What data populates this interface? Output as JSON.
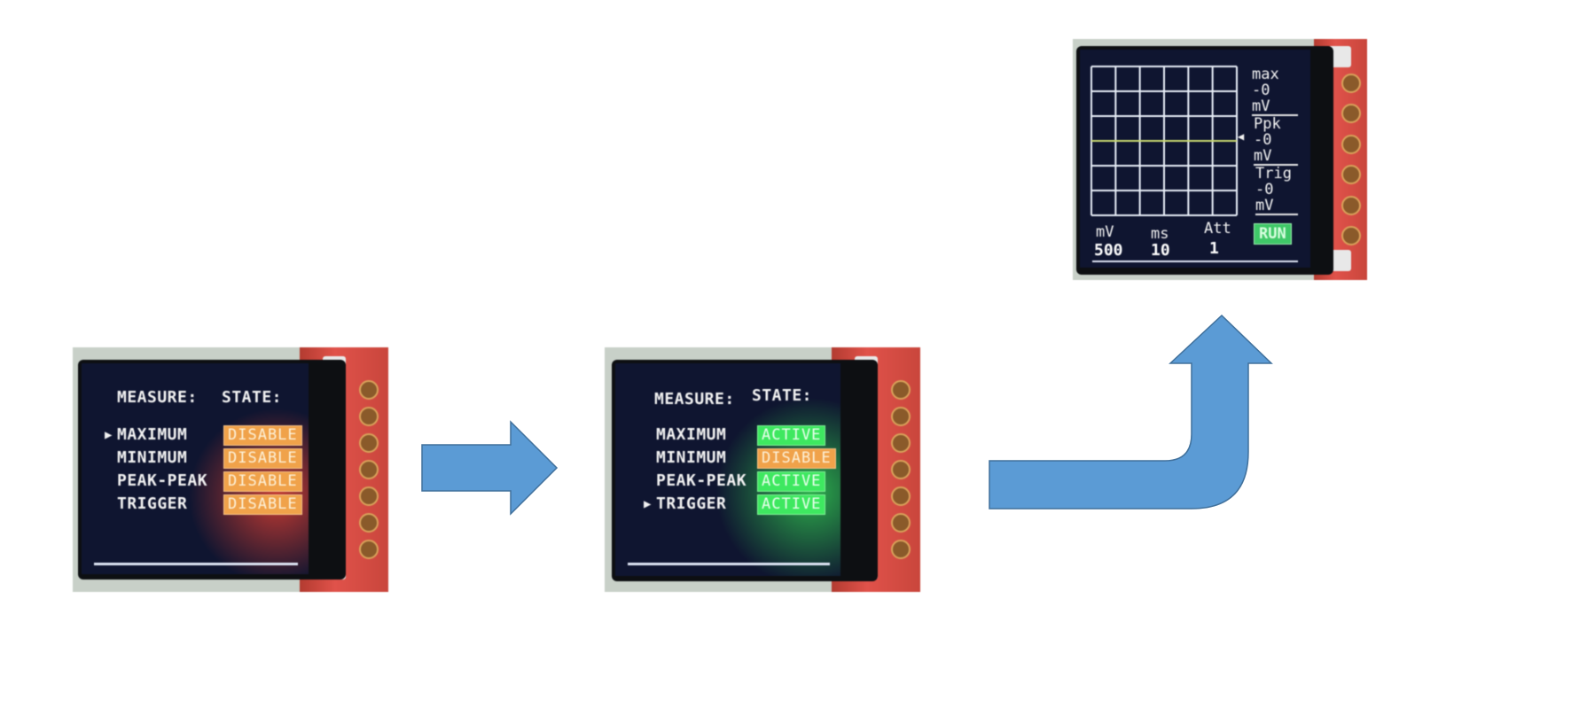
{
  "colors": {
    "arrow_fill": "#5b9bd5",
    "arrow_stroke": "#41719c",
    "disable_badge": "#f0a24a",
    "active_badge": "#3ee860",
    "run_badge": "#3fc868",
    "screen_bg": "#0f1530",
    "grid_line": "#e8eef8",
    "trigger_line": "#c8d870"
  },
  "menu_before": {
    "header_measure": "MEASURE:",
    "header_state": "STATE:",
    "pointer": "▶",
    "selected_index": 0,
    "items": [
      {
        "name": "MAXIMUM",
        "state": "DISABLE"
      },
      {
        "name": "MINIMUM",
        "state": "DISABLE"
      },
      {
        "name": "PEAK-PEAK",
        "state": "DISABLE"
      },
      {
        "name": "TRIGGER",
        "state": "DISABLE"
      }
    ]
  },
  "menu_after": {
    "header_measure": "MEASURE:",
    "header_state": "STATE:",
    "pointer": "▶",
    "selected_index": 3,
    "items": [
      {
        "name": "MAXIMUM",
        "state": "ACTIVE"
      },
      {
        "name": "MINIMUM",
        "state": "DISABLE"
      },
      {
        "name": "PEAK-PEAK",
        "state": "ACTIVE"
      },
      {
        "name": "TRIGGER",
        "state": "ACTIVE"
      }
    ]
  },
  "scope": {
    "side": {
      "max_label": "max",
      "max_value": "-0",
      "max_unit": "mV",
      "ppk_label": "Ppk",
      "ppk_value": "-0",
      "ppk_unit": "mV",
      "trig_label": "Trig",
      "trig_value": "-0",
      "trig_unit": "mV"
    },
    "bottom": {
      "volt_label": "mV",
      "volt_value": "500",
      "time_label": "ms",
      "time_value": "10",
      "att_label": "Att",
      "att_value": "1",
      "run_label": "RUN"
    },
    "grid_cols": 6,
    "grid_rows": 6,
    "trigger_marker": "◀"
  },
  "icons": {
    "arrow_1": "right-arrow-icon",
    "arrow_2": "bent-up-arrow-icon"
  }
}
